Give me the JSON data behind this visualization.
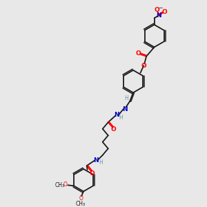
{
  "background_color": "#e8e8e8",
  "bond_color": "#1a1a1a",
  "atom_colors": {
    "O": "#ff0000",
    "N": "#0000cc",
    "C": "#1a1a1a",
    "H": "#6699aa"
  },
  "figsize": [
    3.0,
    3.0
  ],
  "dpi": 100
}
